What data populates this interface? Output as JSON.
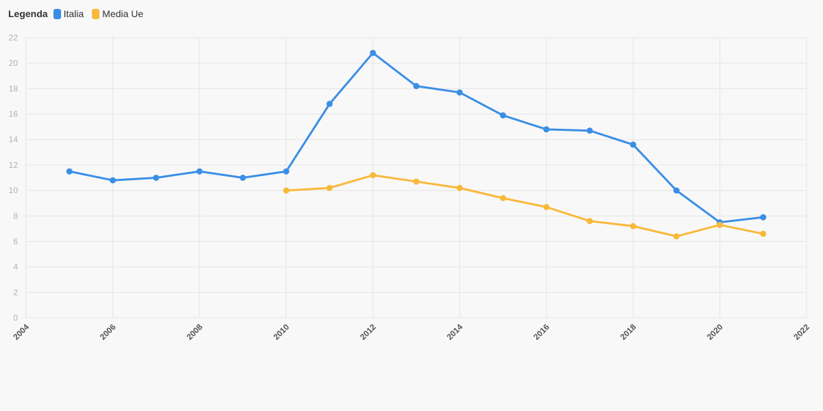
{
  "legend": {
    "title": "Legenda"
  },
  "chart_data": {
    "type": "line",
    "title": "",
    "xlabel": "",
    "ylabel": "",
    "xlim": [
      2004,
      2022
    ],
    "ylim": [
      0,
      22
    ],
    "x_ticks": [
      2004,
      2006,
      2008,
      2010,
      2012,
      2014,
      2016,
      2018,
      2020,
      2022
    ],
    "y_ticks": [
      0,
      2,
      4,
      6,
      8,
      10,
      12,
      14,
      16,
      18,
      20,
      22
    ],
    "grid": true,
    "legend_position": "top-left",
    "series": [
      {
        "name": "Italia",
        "color": "#3a8ee6",
        "x": [
          2005,
          2006,
          2007,
          2008,
          2009,
          2010,
          2011,
          2012,
          2013,
          2014,
          2015,
          2016,
          2017,
          2018,
          2019,
          2020,
          2021
        ],
        "y": [
          11.5,
          10.8,
          11.0,
          11.5,
          11.0,
          11.5,
          16.8,
          20.8,
          18.2,
          17.7,
          15.9,
          14.8,
          14.7,
          13.6,
          10.0,
          7.5,
          7.9
        ]
      },
      {
        "name": "Media Ue",
        "color": "#f8b93b",
        "x": [
          2010,
          2011,
          2012,
          2013,
          2014,
          2015,
          2016,
          2017,
          2018,
          2019,
          2020,
          2021
        ],
        "y": [
          10.0,
          10.2,
          11.2,
          10.7,
          10.2,
          9.4,
          8.7,
          7.6,
          7.2,
          6.4,
          7.3,
          6.6
        ]
      }
    ]
  }
}
